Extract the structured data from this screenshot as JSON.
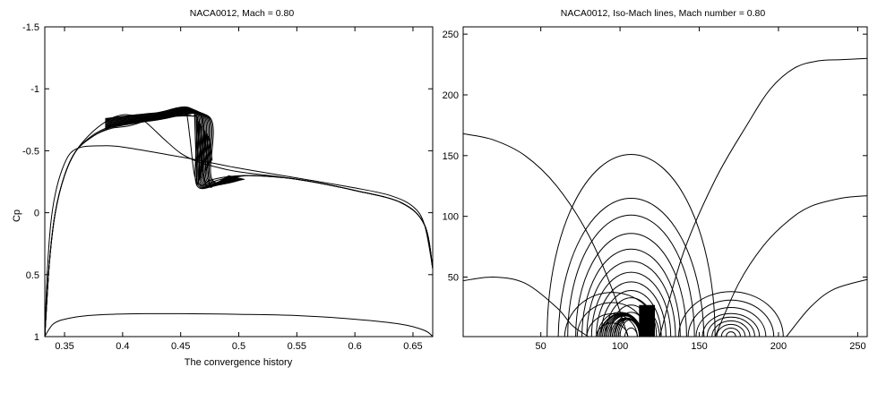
{
  "chart_data": [
    {
      "type": "line",
      "title": "NACA0012, Mach = 0.80",
      "xlabel": "The convergence history",
      "ylabel": "Cp",
      "xlim": [
        0.333,
        0.667
      ],
      "ylim": [
        -1.5,
        1
      ],
      "y_reversed": true,
      "xticks": [
        0.35,
        0.4,
        0.45,
        0.5,
        0.55,
        0.6,
        0.65
      ],
      "xtick_labels": [
        "0.35",
        "0.4",
        "0.45",
        "0.5",
        "0.55",
        "0.6",
        "0.65"
      ],
      "yticks": [
        -1.5,
        -1,
        -0.5,
        0,
        0.5,
        1
      ],
      "ytick_labels": [
        "-1.5",
        "-1",
        "-0.5",
        "0",
        "0.5",
        "1"
      ],
      "series": [
        {
          "x": [
            0.333,
            0.336,
            0.34,
            0.346,
            0.355,
            0.37,
            0.39,
            0.42,
            0.45,
            0.5,
            0.55,
            0.6,
            0.64,
            0.66,
            0.667
          ],
          "y": [
            1.0,
            0.95,
            0.9,
            0.87,
            0.85,
            0.83,
            0.82,
            0.815,
            0.815,
            0.82,
            0.83,
            0.86,
            0.9,
            0.95,
            1.0
          ]
        },
        {
          "x": [
            0.333,
            0.335,
            0.338,
            0.342,
            0.348,
            0.355,
            0.365,
            0.38,
            0.4,
            0.45,
            0.5,
            0.55,
            0.6,
            0.63,
            0.65,
            0.66,
            0.667
          ],
          "y": [
            1.0,
            0.5,
            0.1,
            -0.15,
            -0.35,
            -0.48,
            -0.53,
            -0.54,
            -0.53,
            -0.45,
            -0.36,
            -0.28,
            -0.2,
            -0.14,
            -0.05,
            0.1,
            0.45
          ]
        },
        {
          "x": [
            0.333,
            0.337,
            0.342,
            0.35,
            0.36,
            0.375,
            0.39,
            0.4,
            0.405,
            0.41,
            0.42,
            0.435,
            0.45,
            0.465,
            0.48,
            0.5,
            0.55,
            0.6,
            0.64,
            0.66,
            0.667
          ],
          "y": [
            1.0,
            0.4,
            0.0,
            -0.3,
            -0.5,
            -0.66,
            -0.76,
            -0.79,
            -0.79,
            -0.78,
            -0.73,
            -0.6,
            -0.48,
            -0.41,
            -0.37,
            -0.33,
            -0.27,
            -0.18,
            -0.08,
            0.1,
            0.45
          ]
        },
        {
          "x": [
            0.333,
            0.337,
            0.342,
            0.35,
            0.36,
            0.375,
            0.39,
            0.405,
            0.42,
            0.435,
            0.445,
            0.45,
            0.455,
            0.458,
            0.462,
            0.468,
            0.475,
            0.49,
            0.51,
            0.55,
            0.6,
            0.64,
            0.66,
            0.667
          ],
          "y": [
            1.0,
            0.4,
            0.0,
            -0.3,
            -0.5,
            -0.63,
            -0.7,
            -0.74,
            -0.77,
            -0.79,
            -0.8,
            -0.81,
            -0.8,
            -0.6,
            -0.3,
            -0.22,
            -0.26,
            -0.29,
            -0.3,
            -0.27,
            -0.18,
            -0.08,
            0.1,
            0.45
          ]
        },
        {
          "x": [
            0.333,
            0.337,
            0.342,
            0.35,
            0.36,
            0.375,
            0.39,
            0.405,
            0.42,
            0.435,
            0.45,
            0.46,
            0.465,
            0.468,
            0.472,
            0.478,
            0.49,
            0.51,
            0.55,
            0.6,
            0.64,
            0.66,
            0.667
          ],
          "y": [
            1.0,
            0.4,
            0.0,
            -0.3,
            -0.5,
            -0.62,
            -0.69,
            -0.72,
            -0.76,
            -0.78,
            -0.79,
            -0.78,
            -0.74,
            -0.4,
            -0.22,
            -0.25,
            -0.28,
            -0.3,
            -0.27,
            -0.18,
            -0.08,
            0.1,
            0.45
          ]
        },
        {
          "x": [
            0.333,
            0.337,
            0.342,
            0.35,
            0.36,
            0.375,
            0.39,
            0.405,
            0.42,
            0.435,
            0.45,
            0.46,
            0.468,
            0.472,
            0.475,
            0.48,
            0.49,
            0.51,
            0.55,
            0.6,
            0.64,
            0.66,
            0.667
          ],
          "y": [
            1.0,
            0.4,
            0.0,
            -0.3,
            -0.5,
            -0.62,
            -0.68,
            -0.7,
            -0.74,
            -0.77,
            -0.78,
            -0.78,
            -0.77,
            -0.5,
            -0.22,
            -0.24,
            -0.27,
            -0.3,
            -0.27,
            -0.18,
            -0.08,
            0.1,
            0.45
          ]
        }
      ],
      "band": {
        "x_start": 0.385,
        "x_end": 0.47,
        "y_top": [
          -0.76,
          -0.81
        ],
        "y_bottom": [
          -0.68,
          -0.77
        ],
        "shock_x": [
          0.462,
          0.475
        ],
        "shock_y": [
          -0.8,
          -0.22
        ]
      }
    },
    {
      "type": "line",
      "title": "NACA0012, Iso-Mach lines, Mach number = 0.80",
      "xlim": [
        1,
        256
      ],
      "ylim": [
        1,
        256
      ],
      "xticks": [
        50,
        100,
        150,
        200,
        250
      ],
      "xtick_labels": [
        "50",
        "100",
        "150",
        "200",
        "250"
      ],
      "yticks": [
        50,
        100,
        150,
        200,
        250
      ],
      "ytick_labels": [
        "50",
        "100",
        "150",
        "200",
        "250"
      ],
      "outer_lines": [
        {
          "x": [
            1,
            20,
            40,
            60,
            80,
            95,
            105
          ],
          "y": [
            168,
            163,
            150,
            125,
            85,
            40,
            1
          ]
        },
        {
          "x": [
            125,
            140,
            160,
            180,
            195,
            210,
            225,
            240,
            256
          ],
          "y": [
            1,
            70,
            130,
            175,
            205,
            222,
            228,
            229,
            230
          ]
        },
        {
          "x": [
            1,
            20,
            40,
            60,
            70,
            80
          ],
          "y": [
            47,
            50,
            45,
            25,
            10,
            1
          ]
        },
        {
          "x": [
            160,
            175,
            190,
            205,
            220,
            240,
            256
          ],
          "y": [
            1,
            45,
            75,
            95,
            108,
            115,
            117
          ]
        },
        {
          "x": [
            205,
            220,
            235,
            256
          ],
          "y": [
            1,
            25,
            40,
            48
          ]
        }
      ],
      "center_contours": {
        "cx": 107,
        "base": 1,
        "radii_x": [
          4,
          7,
          10,
          13,
          16,
          19,
          22,
          25,
          28,
          31,
          35,
          40,
          46,
          53
        ],
        "radii_y": [
          8,
          14,
          20,
          26,
          32,
          38,
          45,
          53,
          62,
          72,
          85,
          100,
          118,
          150
        ]
      },
      "left_small": {
        "cx": 95,
        "base": 1,
        "radii_x": [
          10,
          16,
          22,
          30
        ],
        "radii_y": [
          12,
          20,
          28,
          38
        ]
      },
      "right_small": {
        "cx": 170,
        "base": 1,
        "radii_x": [
          3,
          6,
          9,
          12,
          15,
          18,
          22,
          27,
          33
        ],
        "radii_y": [
          4,
          7,
          10,
          13,
          16,
          19,
          24,
          30,
          37
        ]
      }
    }
  ]
}
